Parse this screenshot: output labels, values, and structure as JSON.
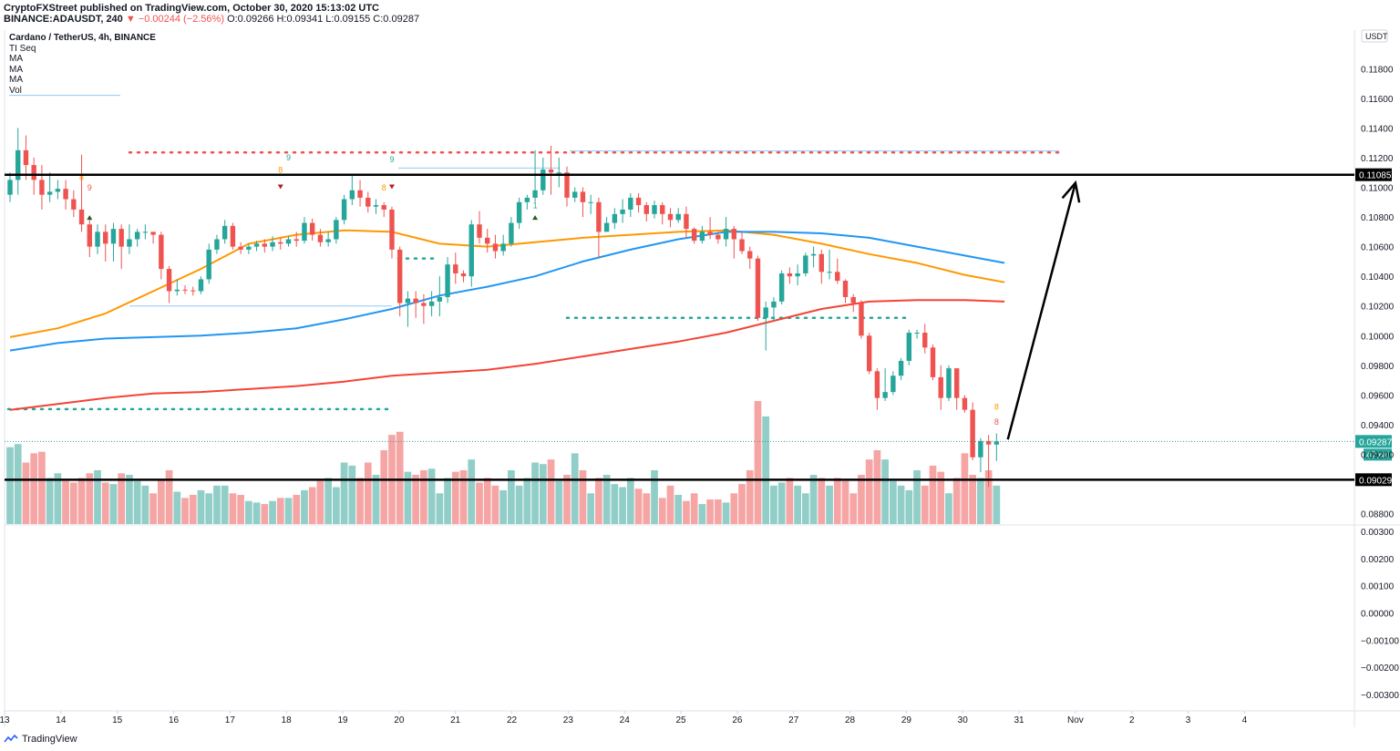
{
  "header": {
    "line1": "CryptoFXStreet published on TradingView.com, October 30, 2020 15:13:02 UTC",
    "symbol": "BINANCE:ADAUSDT, 240",
    "change": "▼ −0.00244 (−2.56%)",
    "ohlc": "O:0.09266 H:0.09341 L:0.09155 C:0.09287"
  },
  "legend": {
    "title": "Cardano / TetherUS, 4h, BINANCE",
    "indicators": [
      "TI Seq",
      "MA",
      "MA",
      "MA",
      "Vol"
    ]
  },
  "footer": {
    "brand": "TradingView"
  },
  "colors": {
    "up": "#26a69a",
    "down": "#ef5350",
    "ma_fast": "#ff9800",
    "ma_mid": "#2196f3",
    "ma_slow": "#f44336",
    "vol_up": "#91cec8",
    "vol_down": "#f6a5a5"
  },
  "chart_data": {
    "type": "candlestick",
    "currency_label": "USDT",
    "price_ticks": [
      "0.11800",
      "0.11600",
      "0.11400",
      "0.11200",
      "0.11000",
      "0.10800",
      "0.10600",
      "0.10400",
      "0.10200",
      "0.10000",
      "0.09800",
      "0.09600",
      "0.09400",
      "0.09200",
      "0.08800"
    ],
    "tick_values": [
      0.118,
      0.116,
      0.114,
      0.112,
      0.11,
      0.108,
      0.106,
      0.104,
      0.102,
      0.1,
      0.098,
      0.096,
      0.094,
      0.092,
      0.088
    ],
    "ylim": [
      0.0873,
      0.1206
    ],
    "osc_ticks": [
      "0.00300",
      "0.00200",
      "0.00100",
      "0.00000",
      "−0.00100",
      "−0.00200",
      "−0.00300"
    ],
    "osc_values": [
      0.003,
      0.002,
      0.001,
      0,
      -0.001,
      -0.002,
      -0.003
    ],
    "osc_ylim": [
      -0.0035,
      0.0032
    ],
    "x_labels": [
      "13",
      "14",
      "15",
      "16",
      "17",
      "18",
      "19",
      "20",
      "21",
      "22",
      "23",
      "24",
      "25",
      "26",
      "27",
      "28",
      "29",
      "30",
      "31",
      "Nov",
      "2",
      "3",
      "4"
    ],
    "x_range": [
      13,
      36.95
    ],
    "resistance": {
      "value": 0.11085,
      "label": "0.11085"
    },
    "support": {
      "value": 0.09029,
      "label": "0.09029"
    },
    "last_price": {
      "value": 0.09287,
      "label": "0.09287"
    },
    "countdown": "47:00",
    "arrow": {
      "from": [
        30.8,
        0.093
      ],
      "to": [
        32.0,
        0.1103
      ]
    },
    "candles": [
      [
        0.1095,
        0.1105,
        0.109,
        0.111
      ],
      [
        0.1105,
        0.1125,
        0.1095,
        0.114
      ],
      [
        0.1125,
        0.1115,
        0.1105,
        0.1135
      ],
      [
        0.1115,
        0.1105,
        0.1095,
        0.112
      ],
      [
        0.1105,
        0.1095,
        0.1085,
        0.1115
      ],
      [
        0.1095,
        0.1097,
        0.109,
        0.111
      ],
      [
        0.1097,
        0.1099,
        0.1092,
        0.1105
      ],
      [
        0.1099,
        0.1092,
        0.1085,
        0.1105
      ],
      [
        0.1092,
        0.1085,
        0.108,
        0.1098
      ],
      [
        0.1085,
        0.1075,
        0.107,
        0.1122
      ],
      [
        0.1075,
        0.106,
        0.1053,
        0.108
      ],
      [
        0.106,
        0.107,
        0.1055,
        0.1075
      ],
      [
        0.107,
        0.1062,
        0.105,
        0.1075
      ],
      [
        0.1062,
        0.1072,
        0.105,
        0.1076
      ],
      [
        0.1072,
        0.106,
        0.1045,
        0.1075
      ],
      [
        0.106,
        0.1065,
        0.1055,
        0.1075
      ],
      [
        0.1065,
        0.107,
        0.106,
        0.1072
      ],
      [
        0.107,
        0.107,
        0.1065,
        0.1075
      ],
      [
        0.107,
        0.1068,
        0.1062,
        0.107
      ],
      [
        0.1068,
        0.1045,
        0.1038,
        0.107
      ],
      [
        0.1045,
        0.103,
        0.1022,
        0.1047
      ],
      [
        0.103,
        0.1031,
        0.1027,
        0.1038
      ],
      [
        0.1031,
        0.10305,
        0.1028,
        0.1034
      ],
      [
        0.10305,
        0.103,
        0.1027,
        0.1033
      ],
      [
        0.103,
        0.1038,
        0.1028,
        0.104
      ],
      [
        0.1038,
        0.1058,
        0.1035,
        0.1062
      ],
      [
        0.1058,
        0.1065,
        0.1055,
        0.1068
      ],
      [
        0.1065,
        0.1074,
        0.1062,
        0.1078
      ],
      [
        0.1074,
        0.106,
        0.1058,
        0.1076
      ],
      [
        0.106,
        0.1058,
        0.1055,
        0.1063
      ],
      [
        0.1058,
        0.106,
        0.1055,
        0.1062
      ],
      [
        0.106,
        0.1062,
        0.1057,
        0.1064
      ],
      [
        0.1062,
        0.106,
        0.1056,
        0.1065
      ],
      [
        0.106,
        0.1063,
        0.1057,
        0.1067
      ],
      [
        0.1063,
        0.1062,
        0.1058,
        0.1066
      ],
      [
        0.1062,
        0.1065,
        0.106,
        0.1067
      ],
      [
        0.1065,
        0.1064,
        0.106,
        0.107
      ],
      [
        0.1064,
        0.1076,
        0.1062,
        0.108
      ],
      [
        0.1076,
        0.1068,
        0.1064,
        0.1079
      ],
      [
        0.1068,
        0.1063,
        0.106,
        0.1072
      ],
      [
        0.1063,
        0.1065,
        0.106,
        0.107
      ],
      [
        0.1065,
        0.1078,
        0.1062,
        0.108
      ],
      [
        0.1078,
        0.1092,
        0.1075,
        0.1095
      ],
      [
        0.1092,
        0.1098,
        0.1088,
        0.1108
      ],
      [
        0.1098,
        0.1093,
        0.1087,
        0.1105
      ],
      [
        0.1093,
        0.1087,
        0.1083,
        0.1097
      ],
      [
        0.1087,
        0.1088,
        0.1082,
        0.1092
      ],
      [
        0.1088,
        0.1085,
        0.108,
        0.109
      ],
      [
        0.1085,
        0.1058,
        0.1052,
        0.1087
      ],
      [
        0.1058,
        0.1022,
        0.1013,
        0.106
      ],
      [
        0.1022,
        0.1025,
        0.1006,
        0.103
      ],
      [
        0.1025,
        0.1022,
        0.1012,
        0.103
      ],
      [
        0.1022,
        0.102,
        0.1008,
        0.1028
      ],
      [
        0.102,
        0.1023,
        0.1013,
        0.103
      ],
      [
        0.1023,
        0.1026,
        0.1013,
        0.104
      ],
      [
        0.1026,
        0.1048,
        0.1022,
        0.1053
      ],
      [
        0.1048,
        0.1042,
        0.1035,
        0.1056
      ],
      [
        0.1042,
        0.104,
        0.1036,
        0.1044
      ],
      [
        0.104,
        0.1075,
        0.1033,
        0.1078
      ],
      [
        0.1075,
        0.1066,
        0.1062,
        0.1084
      ],
      [
        0.1066,
        0.1062,
        0.1056,
        0.1072
      ],
      [
        0.1062,
        0.1057,
        0.1052,
        0.1068
      ],
      [
        0.1057,
        0.1062,
        0.1054,
        0.1068
      ],
      [
        0.1062,
        0.1076,
        0.106,
        0.108
      ],
      [
        0.1076,
        0.109,
        0.1072,
        0.1093
      ],
      [
        0.109,
        0.1093,
        0.1085,
        0.1095
      ],
      [
        0.1093,
        0.1098,
        0.109,
        0.1125
      ],
      [
        0.1098,
        0.1112,
        0.1095,
        0.112
      ],
      [
        0.1112,
        0.111,
        0.1095,
        0.1128
      ],
      [
        0.111,
        0.111,
        0.11,
        0.112
      ],
      [
        0.111,
        0.1093,
        0.1087,
        0.1114
      ],
      [
        0.1093,
        0.1097,
        0.109,
        0.11
      ],
      [
        0.1097,
        0.109,
        0.108,
        0.11
      ],
      [
        0.109,
        0.109,
        0.1082,
        0.1095
      ],
      [
        0.109,
        0.107,
        0.1052,
        0.1093
      ],
      [
        0.107,
        0.1076,
        0.107,
        0.108
      ],
      [
        0.1076,
        0.1082,
        0.1072,
        0.1086
      ],
      [
        0.1082,
        0.1085,
        0.1076,
        0.1092
      ],
      [
        0.1085,
        0.1093,
        0.108,
        0.1096
      ],
      [
        0.1093,
        0.1088,
        0.1083,
        0.1096
      ],
      [
        0.1088,
        0.1082,
        0.1077,
        0.109
      ],
      [
        0.1082,
        0.1088,
        0.1079,
        0.1091
      ],
      [
        0.1088,
        0.1082,
        0.1075,
        0.109
      ],
      [
        0.1082,
        0.1078,
        0.1073,
        0.1086
      ],
      [
        0.1078,
        0.1082,
        0.1076,
        0.1086
      ],
      [
        0.1082,
        0.1072,
        0.1066,
        0.1087
      ],
      [
        0.1072,
        0.1064,
        0.1062,
        0.1073
      ],
      [
        0.1064,
        0.107,
        0.1062,
        0.1074
      ],
      [
        0.107,
        0.1068,
        0.1065,
        0.108
      ],
      [
        0.1068,
        0.1065,
        0.1062,
        0.107
      ],
      [
        0.1065,
        0.1072,
        0.106,
        0.108
      ],
      [
        0.1072,
        0.1065,
        0.1052,
        0.1074
      ],
      [
        0.1065,
        0.1057,
        0.1055,
        0.107
      ],
      [
        0.1057,
        0.1052,
        0.1045,
        0.106
      ],
      [
        0.1052,
        0.1012,
        0.101,
        0.1054
      ],
      [
        0.1012,
        0.1019,
        0.099,
        0.1023
      ],
      [
        0.1019,
        0.1023,
        0.101,
        0.1026
      ],
      [
        0.1023,
        0.1042,
        0.1021,
        0.1044
      ],
      [
        0.1042,
        0.104,
        0.1035,
        0.1046
      ],
      [
        0.104,
        0.1042,
        0.1034,
        0.1048
      ],
      [
        0.1042,
        0.1054,
        0.104,
        0.1056
      ],
      [
        0.1054,
        0.1055,
        0.1046,
        0.106
      ],
      [
        0.1055,
        0.1043,
        0.1035,
        0.1058
      ],
      [
        0.1043,
        0.1043,
        0.1038,
        0.1058
      ],
      [
        0.1043,
        0.1037,
        0.1035,
        0.1052
      ],
      [
        0.1037,
        0.1026,
        0.1022,
        0.1038
      ],
      [
        0.1026,
        0.1022,
        0.1016,
        0.1028
      ],
      [
        0.1022,
        0.1,
        0.0998,
        0.1024
      ],
      [
        0.1,
        0.0976,
        0.0974,
        0.1002
      ],
      [
        0.0976,
        0.0958,
        0.095,
        0.0978
      ],
      [
        0.0958,
        0.0962,
        0.0956,
        0.0978
      ],
      [
        0.0962,
        0.0973,
        0.096,
        0.0976
      ],
      [
        0.0973,
        0.0983,
        0.097,
        0.0985
      ],
      [
        0.0983,
        0.1002,
        0.098,
        0.1004
      ],
      [
        0.1002,
        0.1002,
        0.0998,
        0.1004
      ],
      [
        0.1002,
        0.0992,
        0.0988,
        0.1008
      ],
      [
        0.0992,
        0.0972,
        0.097,
        0.0994
      ],
      [
        0.0972,
        0.0958,
        0.095,
        0.098
      ],
      [
        0.0958,
        0.0978,
        0.0956,
        0.098
      ],
      [
        0.0978,
        0.0958,
        0.095,
        0.0978
      ],
      [
        0.0958,
        0.095,
        0.0948,
        0.096
      ],
      [
        0.095,
        0.0918,
        0.0916,
        0.0955
      ],
      [
        0.0918,
        0.0929,
        0.0908,
        0.0931
      ],
      [
        0.0929,
        0.09266,
        0.0898,
        0.0933
      ],
      [
        0.09266,
        0.09287,
        0.09155,
        0.09341
      ]
    ],
    "volume": [
      50,
      52,
      40,
      46,
      47,
      30,
      33,
      28,
      27,
      30,
      33,
      35,
      27,
      26,
      33,
      32,
      28,
      25,
      20,
      29,
      35,
      21,
      17,
      19,
      22,
      20,
      25,
      25,
      20,
      19,
      15,
      14,
      13,
      15,
      17,
      17,
      19,
      22,
      24,
      28,
      30,
      24,
      40,
      38,
      30,
      40,
      32,
      48,
      58,
      60,
      34,
      32,
      35,
      36,
      20,
      30,
      34,
      35,
      42,
      27,
      30,
      25,
      22,
      35,
      25,
      30,
      40,
      39,
      42,
      28,
      32,
      46,
      35,
      20,
      30,
      32,
      26,
      24,
      30,
      23,
      20,
      35,
      17,
      25,
      19,
      15,
      20,
      13,
      16,
      16,
      14,
      20,
      26,
      35,
      80,
      70,
      25,
      27,
      30,
      25,
      20,
      32,
      30,
      25,
      30,
      28,
      20,
      32,
      42,
      48,
      42,
      28,
      25,
      22,
      35,
      25,
      38,
      34,
      20,
      30,
      46,
      32,
      30,
      35,
      25
    ]
  }
}
